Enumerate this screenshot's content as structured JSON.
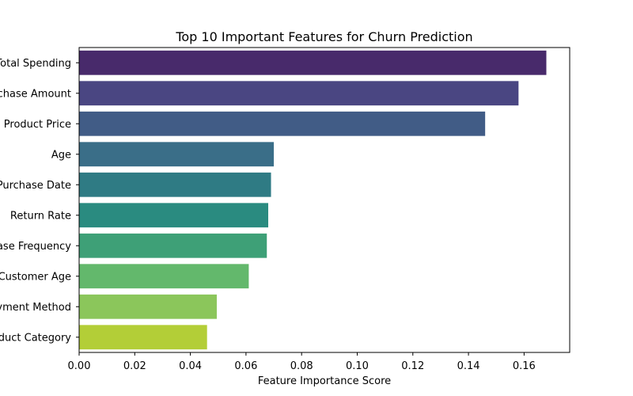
{
  "chart_data": {
    "type": "bar",
    "orientation": "horizontal",
    "title": "Top 10 Important Features for Churn Prediction",
    "xlabel": "Feature Importance Score",
    "ylabel": "",
    "xlim": [
      0,
      0.1764
    ],
    "x_ticks": [
      0.0,
      0.02,
      0.04,
      0.06,
      0.08,
      0.1,
      0.12,
      0.14,
      0.16
    ],
    "x_tick_labels": [
      "0.00",
      "0.02",
      "0.04",
      "0.06",
      "0.08",
      "0.10",
      "0.12",
      "0.14",
      "0.16"
    ],
    "grid": false,
    "categories": [
      "Total Spending",
      "Purchase Amount",
      "Product Price",
      "Age",
      "Purchase Date",
      "Return Rate",
      "Purchase Frequency",
      "Customer Age",
      "Payment Method",
      "Product Category"
    ],
    "values": [
      0.168,
      0.158,
      0.146,
      0.07,
      0.069,
      0.068,
      0.0675,
      0.061,
      0.0495,
      0.046
    ],
    "colors": [
      "#482a6b",
      "#4a4682",
      "#415c86",
      "#3a6e88",
      "#2f7b84",
      "#2a8b80",
      "#3ea077",
      "#63b86c",
      "#8bc65b",
      "#b3ce37"
    ]
  }
}
